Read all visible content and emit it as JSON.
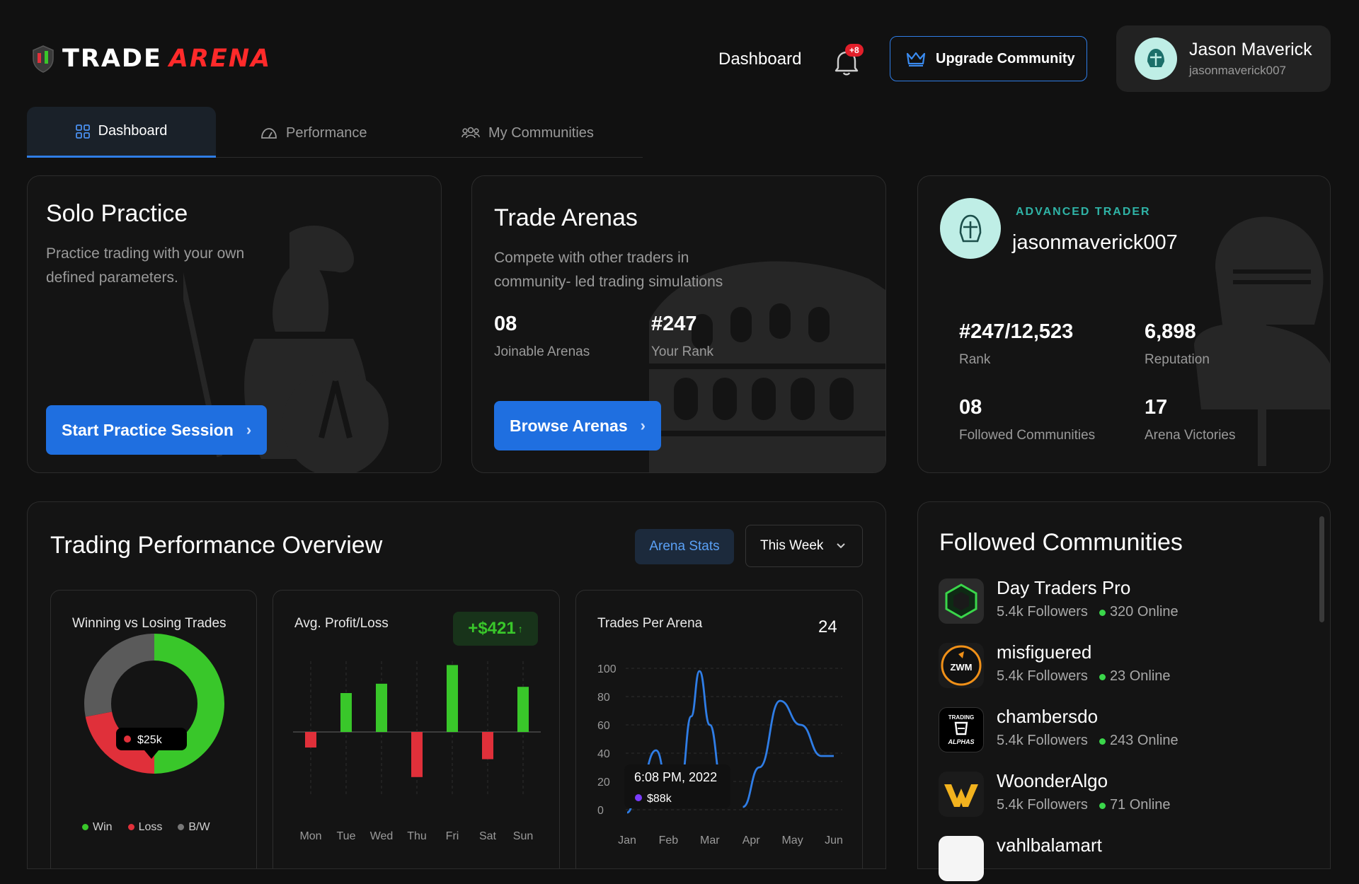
{
  "header": {
    "brand_part1": "TRADE",
    "brand_part2": "ARENA",
    "nav_dashboard": "Dashboard",
    "notification_count": "+8",
    "upgrade_label": "Upgrade Community",
    "user_name": "Jason Maverick",
    "user_handle": "jasonmaverick007"
  },
  "tabs": [
    {
      "label": "Dashboard",
      "active": true
    },
    {
      "label": "Performance",
      "active": false
    },
    {
      "label": "My Communities",
      "active": false
    }
  ],
  "solo": {
    "title": "Solo Practice",
    "desc_line1": "Practice trading with your own",
    "desc_line2": "defined parameters.",
    "button": "Start Practice Session"
  },
  "arenas": {
    "title": "Trade Arenas",
    "desc_line1": "Compete with other traders in",
    "desc_line2": "community- led trading simulations",
    "joinable_value": "08",
    "joinable_label": "Joinable Arenas",
    "rank_value": "#247",
    "rank_label": "Your Rank",
    "button": "Browse Arenas"
  },
  "profile": {
    "level": "ADVANCED TRADER",
    "username": "jasonmaverick007",
    "rank_value": "#247/12,523",
    "rank_label": "Rank",
    "reputation_value": "6,898",
    "reputation_label": "Reputation",
    "followed_value": "08",
    "followed_label": "Followed Communities",
    "victories_value": "17",
    "victories_label": "Arena Victories"
  },
  "overview": {
    "title": "Trading Performance Overview",
    "arena_stats": "Arena Stats",
    "period": "This Week"
  },
  "chart_data": [
    {
      "type": "pie",
      "title": "Winning vs Losing Trades",
      "labels": [
        "Win",
        "Loss",
        "B/W"
      ],
      "values": [
        50,
        22,
        28
      ],
      "colors": [
        "#39c72a",
        "#e0303a",
        "#5a5a5a"
      ],
      "center_label": "$25k"
    },
    {
      "type": "bar",
      "title": "Avg. Profit/Loss",
      "badge": "+$421",
      "categories": [
        "Mon",
        "Tue",
        "Wed",
        "Thu",
        "Fri",
        "Sat",
        "Sun"
      ],
      "values": [
        -20,
        50,
        62,
        -58,
        86,
        -35,
        58
      ],
      "pos_color": "#39c72a",
      "neg_color": "#e0303a"
    },
    {
      "type": "line",
      "title": "Trades Per Arena",
      "count": "24",
      "x": [
        "Jan",
        "Feb",
        "Mar",
        "Apr",
        "May",
        "Jun"
      ],
      "yticks": [
        100,
        80,
        60,
        40,
        20,
        0
      ],
      "ylim": [
        0,
        100
      ],
      "tooltip_time": "6:08 PM, 2022",
      "tooltip_value": "$88k",
      "color": "#2f7de6"
    }
  ],
  "communities": {
    "title": "Followed Communities",
    "items": [
      {
        "name": "Day Traders Pro",
        "followers": "5.4k Followers",
        "online": "320 Online"
      },
      {
        "name": "misfiguered",
        "followers": "5.4k Followers",
        "online": "23 Online"
      },
      {
        "name": "chambersdo",
        "followers": "5.4k Followers",
        "online": "243 Online"
      },
      {
        "name": "WoonderAlgo",
        "followers": "5.4k Followers",
        "online": "71 Online"
      },
      {
        "name": "vahlbalamart",
        "followers": "",
        "online": ""
      }
    ],
    "logo_texts": [
      "ZWM",
      "TRADING",
      "ALPHAS"
    ]
  }
}
